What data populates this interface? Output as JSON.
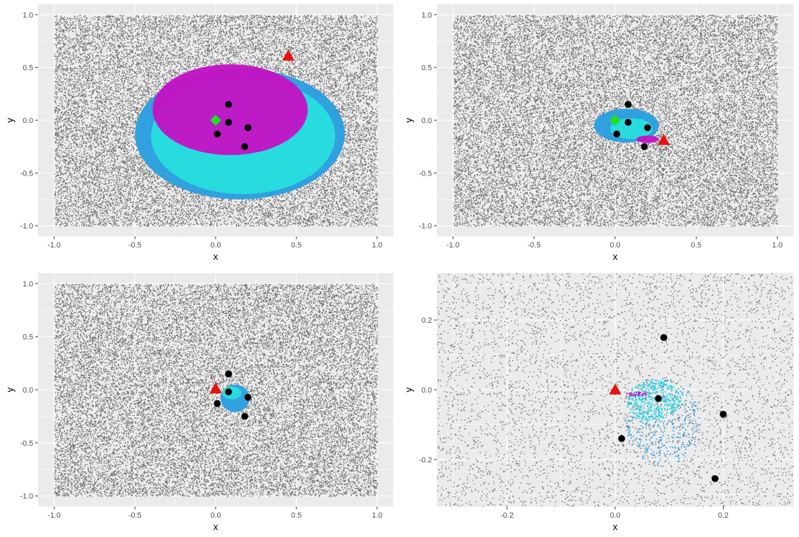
{
  "colors": {
    "panel_background": "#ebebeb",
    "gridline": "#ffffff",
    "background_points": "#6e6e6e",
    "outer_region": "#2b9ee0",
    "middle_region": "#28dede",
    "inner_region": "#c413c4",
    "data_points": "#000000",
    "triangle_marker": "#e8110f",
    "diamond_marker": "#1fe01f"
  },
  "chart_data": [
    {
      "type": "scatter",
      "xlabel": "x",
      "ylabel": "y",
      "xlim": [
        -1.1,
        1.1
      ],
      "ylim": [
        -1.1,
        1.1
      ],
      "x_ticks": [
        -1.0,
        -0.5,
        0.0,
        0.5,
        1.0
      ],
      "x_tick_labels": [
        "-1.0",
        "-0.5",
        "0.0",
        "0.5",
        "1.0"
      ],
      "y_ticks": [
        -1.0,
        -0.5,
        0.0,
        0.5,
        1.0
      ],
      "y_tick_labels": [
        "-1.0",
        "-0.5",
        "0.0",
        "0.5",
        "1.0"
      ],
      "grid": true,
      "background_cloud": {
        "x_range": [
          -1,
          1
        ],
        "y_range": [
          -1,
          1
        ],
        "color": "grey"
      },
      "regions": [
        {
          "color": "outer_region",
          "center": [
            0.15,
            -0.13
          ],
          "rx": 0.65,
          "ry": 0.62
        },
        {
          "color": "middle_region",
          "center": [
            0.17,
            -0.15
          ],
          "rx": 0.57,
          "ry": 0.55
        },
        {
          "color": "inner_region",
          "center": [
            0.09,
            0.1
          ],
          "rx": 0.48,
          "ry": 0.43
        }
      ],
      "points": [
        {
          "x": 0.08,
          "y": 0.15
        },
        {
          "x": 0.08,
          "y": -0.02
        },
        {
          "x": 0.2,
          "y": -0.07
        },
        {
          "x": 0.01,
          "y": -0.13
        },
        {
          "x": 0.18,
          "y": -0.25
        }
      ],
      "triangle": {
        "x": 0.45,
        "y": 0.61
      },
      "diamond": {
        "x": 0.0,
        "y": 0.0
      }
    },
    {
      "type": "scatter",
      "xlabel": "x",
      "ylabel": "y",
      "xlim": [
        -1.1,
        1.1
      ],
      "ylim": [
        -1.1,
        1.1
      ],
      "x_ticks": [
        -1.0,
        -0.5,
        0.0,
        0.5,
        1.0
      ],
      "x_tick_labels": [
        "-1.0",
        "-0.5",
        "0.0",
        "0.5",
        "1.0"
      ],
      "y_ticks": [
        -1.0,
        -0.5,
        0.0,
        0.5,
        1.0
      ],
      "y_tick_labels": [
        "-1.0",
        "-0.5",
        "0.0",
        "0.5",
        "1.0"
      ],
      "grid": true,
      "background_cloud": {
        "x_range": [
          -1,
          1
        ],
        "y_range": [
          -1,
          1
        ],
        "color": "grey"
      },
      "regions": [
        {
          "color": "outer_region",
          "center": [
            0.07,
            -0.05
          ],
          "rx": 0.2,
          "ry": 0.16
        },
        {
          "color": "middle_region",
          "center": [
            0.1,
            -0.08
          ],
          "rx": 0.13,
          "ry": 0.1
        },
        {
          "color": "inner_region",
          "center": [
            0.2,
            -0.18
          ],
          "rx": 0.07,
          "ry": 0.035
        }
      ],
      "points": [
        {
          "x": 0.08,
          "y": 0.15
        },
        {
          "x": 0.08,
          "y": -0.02
        },
        {
          "x": 0.2,
          "y": -0.07
        },
        {
          "x": 0.01,
          "y": -0.13
        },
        {
          "x": 0.18,
          "y": -0.25
        }
      ],
      "triangle": {
        "x": 0.3,
        "y": -0.19
      },
      "diamond": {
        "x": 0.0,
        "y": 0.0
      }
    },
    {
      "type": "scatter",
      "xlabel": "x",
      "ylabel": "y",
      "xlim": [
        -1.1,
        1.1
      ],
      "ylim": [
        -1.1,
        1.1
      ],
      "x_ticks": [
        -1.0,
        -0.5,
        0.0,
        0.5,
        1.0
      ],
      "x_tick_labels": [
        "-1.0",
        "-0.5",
        "0.0",
        "0.5",
        "1.0"
      ],
      "y_ticks": [
        -1.0,
        -0.5,
        0.0,
        0.5,
        1.0
      ],
      "y_tick_labels": [
        "-1.0",
        "-0.5",
        "0.0",
        "0.5",
        "1.0"
      ],
      "grid": true,
      "background_cloud": {
        "x_range": [
          -1,
          1
        ],
        "y_range": [
          -1,
          1
        ],
        "color": "grey"
      },
      "regions": [
        {
          "color": "outer_region",
          "center": [
            0.12,
            -0.08
          ],
          "rx": 0.09,
          "ry": 0.13
        },
        {
          "color": "middle_region",
          "center": [
            0.1,
            -0.03
          ],
          "rx": 0.06,
          "ry": 0.06
        }
      ],
      "points": [
        {
          "x": 0.08,
          "y": 0.15
        },
        {
          "x": 0.08,
          "y": -0.02
        },
        {
          "x": 0.2,
          "y": -0.07
        },
        {
          "x": 0.01,
          "y": -0.13
        },
        {
          "x": 0.18,
          "y": -0.25
        }
      ],
      "triangle": {
        "x": 0.0,
        "y": 0.01
      },
      "diamond": null
    },
    {
      "type": "scatter",
      "xlabel": "x",
      "ylabel": "y",
      "xlim": [
        -0.33,
        0.33
      ],
      "ylim": [
        -0.335,
        0.335
      ],
      "x_ticks": [
        -0.2,
        0.0,
        0.2
      ],
      "x_tick_labels": [
        "-0.2",
        "0.0",
        "0.2"
      ],
      "y_ticks": [
        -0.2,
        0.0,
        0.2
      ],
      "y_tick_labels": [
        "-0.2",
        "0.0",
        "0.2"
      ],
      "grid": true,
      "background_cloud": {
        "x_range": [
          -0.33,
          0.33
        ],
        "y_range": [
          -0.335,
          0.335
        ],
        "color": "grey"
      },
      "regions": [
        {
          "color": "outer_region",
          "center": [
            0.085,
            -0.09
          ],
          "rx": 0.07,
          "ry": 0.13
        },
        {
          "color": "middle_region",
          "center": [
            0.07,
            -0.03
          ],
          "rx": 0.05,
          "ry": 0.06
        },
        {
          "color": "inner_region",
          "center": [
            0.04,
            -0.01
          ],
          "rx": 0.02,
          "ry": 0.006
        }
      ],
      "points": [
        {
          "x": 0.09,
          "y": 0.15
        },
        {
          "x": 0.08,
          "y": -0.025
        },
        {
          "x": 0.2,
          "y": -0.07
        },
        {
          "x": 0.012,
          "y": -0.14
        },
        {
          "x": 0.185,
          "y": -0.255
        }
      ],
      "triangle": {
        "x": 0.0,
        "y": 0.0
      },
      "diamond": null
    }
  ]
}
